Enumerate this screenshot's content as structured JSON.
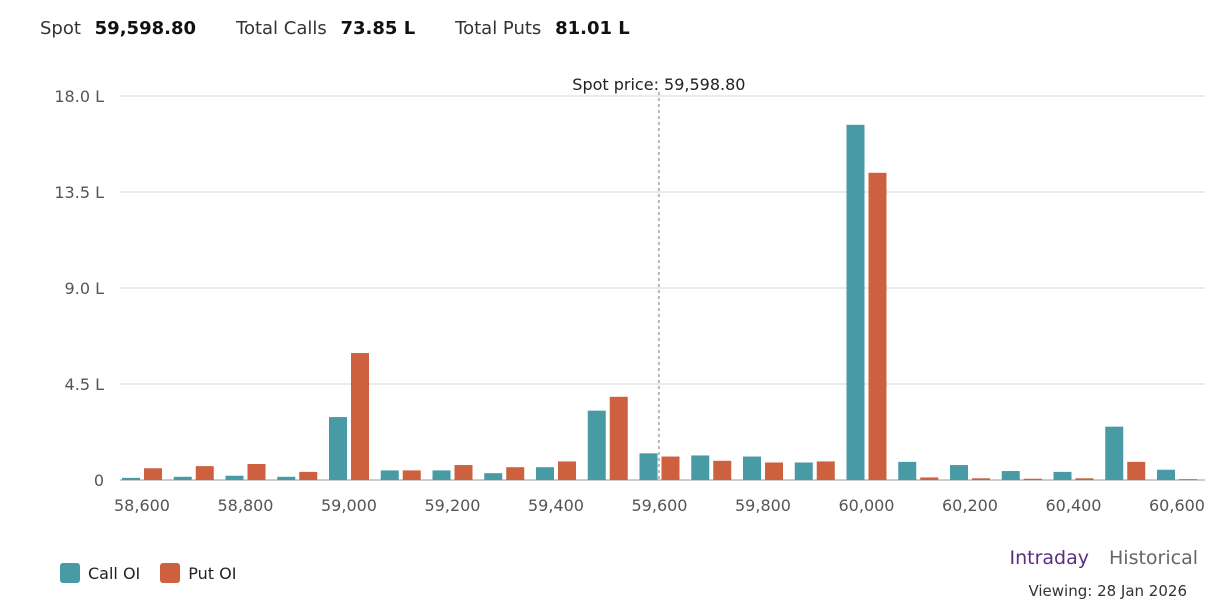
{
  "summary": {
    "spot_label": "Spot",
    "spot_value": "59,598.80",
    "calls_label": "Total Calls",
    "calls_value": "73.85 L",
    "puts_label": "Total Puts",
    "puts_value": "81.01 L"
  },
  "chart_data": {
    "type": "bar",
    "categories": [
      "58,600",
      "58,700",
      "58,800",
      "58,900",
      "59,000",
      "59,100",
      "59,200",
      "59,300",
      "59,400",
      "59,500",
      "59,600",
      "59,700",
      "59,800",
      "59,900",
      "60,000",
      "60,100",
      "60,200",
      "60,300",
      "60,400",
      "60,500",
      "60,600"
    ],
    "series": [
      {
        "name": "Call OI",
        "color": "#489aa4",
        "values": [
          0.1,
          0.15,
          0.2,
          0.15,
          2.95,
          0.45,
          0.45,
          0.32,
          0.6,
          3.25,
          1.25,
          1.15,
          1.1,
          0.82,
          16.65,
          0.85,
          0.7,
          0.42,
          0.38,
          2.5,
          0.48
        ]
      },
      {
        "name": "Put OI",
        "color": "#cc603f",
        "values": [
          0.55,
          0.65,
          0.75,
          0.38,
          5.95,
          0.45,
          0.7,
          0.6,
          0.87,
          3.9,
          1.1,
          0.9,
          0.82,
          0.87,
          14.4,
          0.12,
          0.08,
          0.06,
          0.08,
          0.85,
          0.04
        ]
      }
    ],
    "yticks": [
      "0",
      "4.5 L",
      "9.0 L",
      "13.5 L",
      "18.0 L"
    ],
    "ytick_values": [
      0,
      4.5,
      9.0,
      13.5,
      18.0
    ],
    "xticks": [
      "58,600",
      "58,800",
      "59,000",
      "59,200",
      "59,400",
      "59,600",
      "59,800",
      "60,000",
      "60,200",
      "60,400",
      "60,600"
    ],
    "ylim": [
      0,
      18
    ],
    "spot_price": 59598.8,
    "spot_annotation": "Spot price: 59,598.80",
    "grid": true,
    "legend": "bottom-left"
  },
  "legend": {
    "call": "Call OI",
    "put": "Put OI",
    "call_color": "#489aa4",
    "put_color": "#cc603f"
  },
  "tabs": {
    "intraday": "Intraday",
    "historical": "Historical"
  },
  "viewing": "Viewing: 28 Jan 2026"
}
